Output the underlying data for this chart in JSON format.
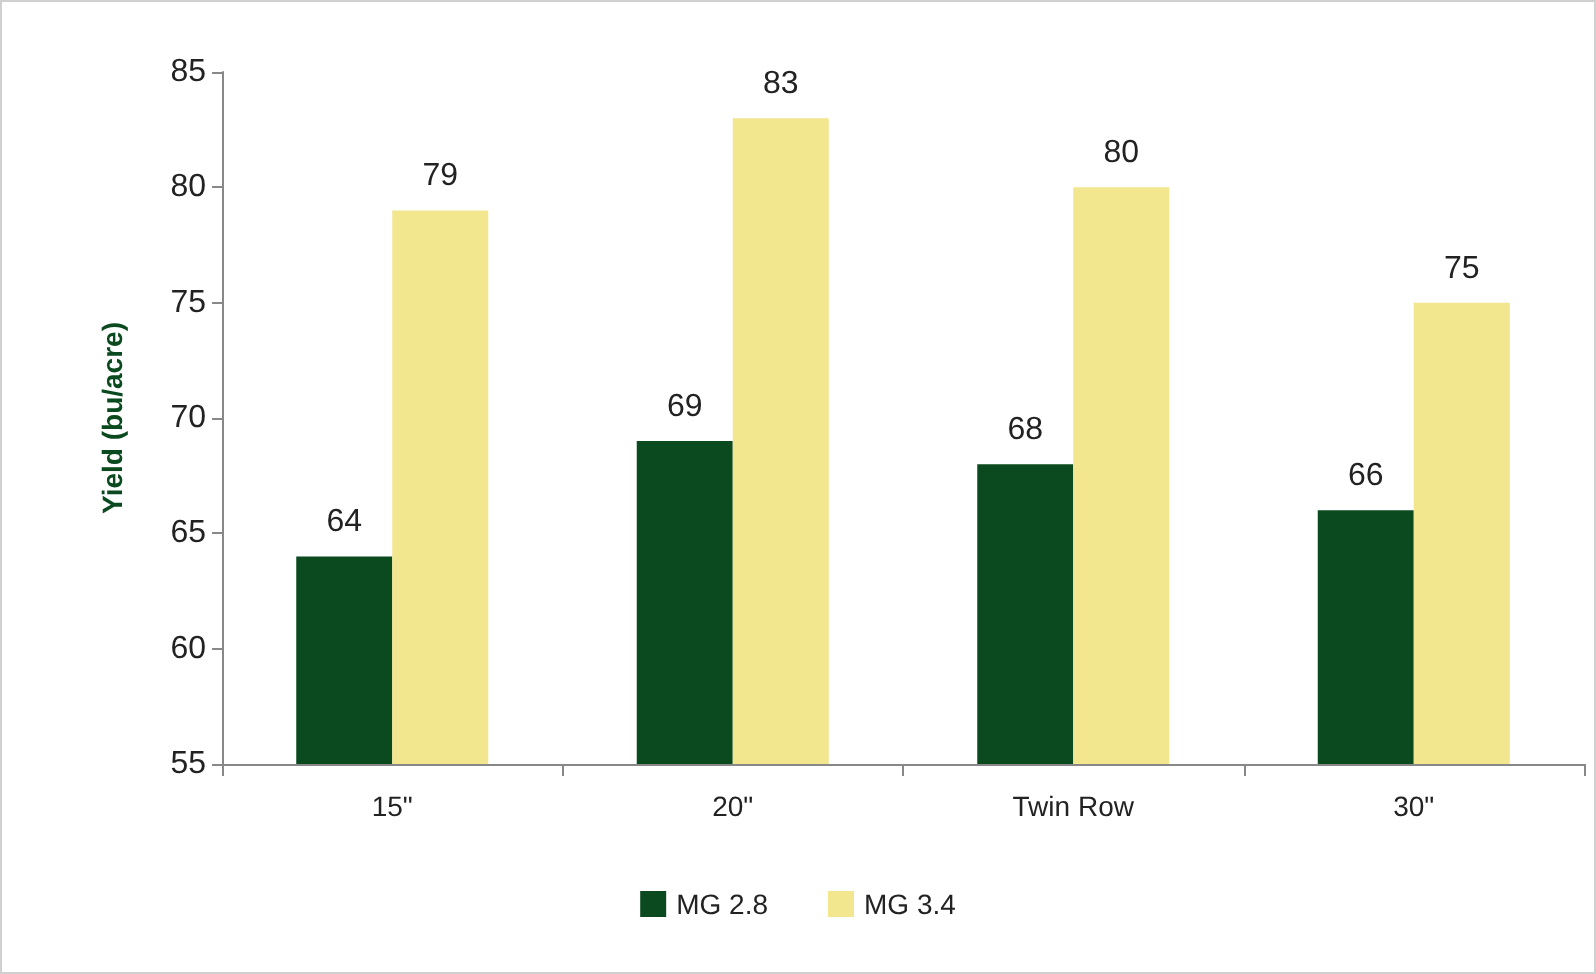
{
  "chart_data": {
    "type": "bar",
    "ylabel": "Yield (bu/acre)",
    "categories": [
      "15\"",
      "20\"",
      "Twin Row",
      "30\""
    ],
    "series": [
      {
        "name": "MG 2.8",
        "color": "#0b4a1f",
        "values": [
          64,
          69,
          68,
          66
        ]
      },
      {
        "name": "MG 3.4",
        "color": "#f2e68f",
        "values": [
          79,
          83,
          80,
          75
        ]
      }
    ],
    "ylim": [
      55,
      85
    ],
    "yticks": [
      55,
      60,
      65,
      70,
      75,
      80,
      85
    ],
    "grid": false,
    "legend": "bottom",
    "data_labels": true
  }
}
